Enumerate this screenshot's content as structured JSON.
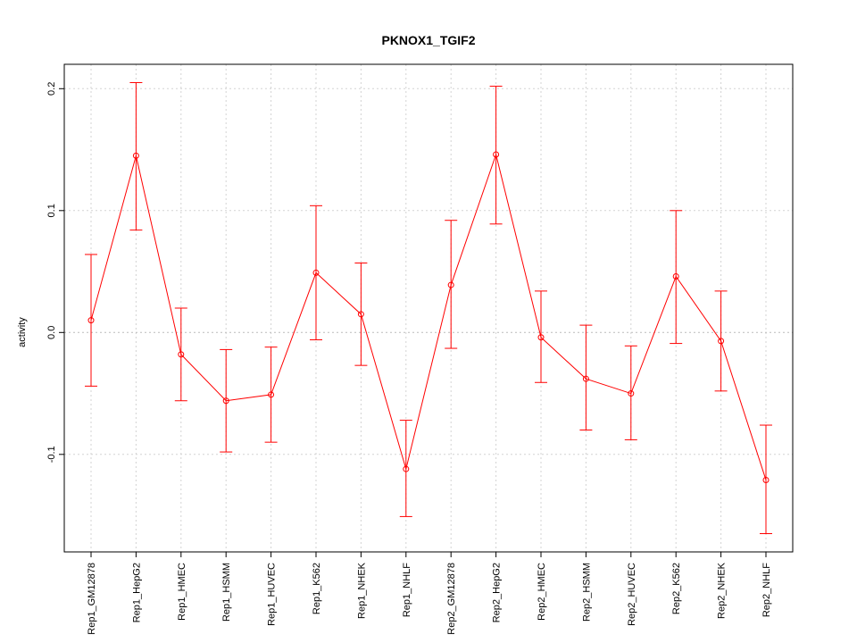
{
  "chart_data": {
    "type": "line",
    "title": "PKNOX1_TGIF2",
    "xlabel": "",
    "ylabel": "activity",
    "categories": [
      "Rep1_GM12878",
      "Rep1_HepG2",
      "Rep1_HMEC",
      "Rep1_HSMM",
      "Rep1_HUVEC",
      "Rep1_K562",
      "Rep1_NHEK",
      "Rep1_NHLF",
      "Rep2_GM12878",
      "Rep2_HepG2",
      "Rep2_HMEC",
      "Rep2_HSMM",
      "Rep2_HUVEC",
      "Rep2_K562",
      "Rep2_NHEK",
      "Rep2_NHLF"
    ],
    "values": [
      0.01,
      0.145,
      -0.018,
      -0.056,
      -0.051,
      0.049,
      0.015,
      -0.112,
      0.039,
      0.146,
      -0.004,
      -0.038,
      -0.05,
      0.046,
      -0.007,
      -0.121
    ],
    "upper": [
      0.064,
      0.205,
      0.02,
      -0.014,
      -0.012,
      0.104,
      0.057,
      -0.072,
      0.092,
      0.202,
      0.034,
      0.006,
      -0.011,
      0.1,
      0.034,
      -0.076
    ],
    "lower": [
      -0.044,
      0.084,
      -0.056,
      -0.098,
      -0.09,
      -0.006,
      -0.027,
      -0.151,
      -0.013,
      0.089,
      -0.041,
      -0.08,
      -0.088,
      -0.009,
      -0.048,
      -0.165
    ],
    "ylim": [
      -0.18,
      0.22
    ],
    "yticks": [
      -0.1,
      0.0,
      0.1,
      0.2
    ],
    "ytick_labels": [
      "-0.1",
      "0.0",
      "0.1",
      "0.2"
    ],
    "reference_line": 0.0,
    "grid": true,
    "color": "#ff0000"
  }
}
